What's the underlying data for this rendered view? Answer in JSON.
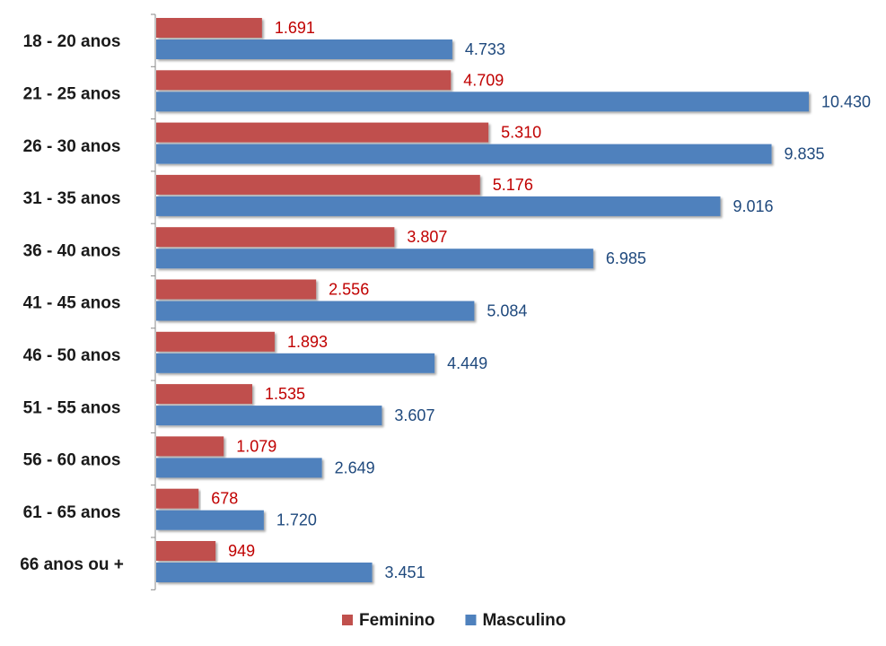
{
  "chart_data": {
    "type": "bar",
    "orientation": "horizontal",
    "categories": [
      "18 - 20 anos",
      "21 - 25 anos",
      "26 - 30 anos",
      "31 - 35 anos",
      "36 - 40 anos",
      "41 - 45 anos",
      "46 - 50 anos",
      "51 - 55 anos",
      "56 - 60 anos",
      "61 - 65 anos",
      "66 anos ou +"
    ],
    "series": [
      {
        "name": "Feminino",
        "color": "#C0504D",
        "label_color": "#C00000",
        "values": [
          1691,
          4709,
          5310,
          5176,
          3807,
          2556,
          1893,
          1535,
          1079,
          678,
          949
        ],
        "labels": [
          "1.691",
          "4.709",
          "5.310",
          "5.176",
          "3.807",
          "2.556",
          "1.893",
          "1.535",
          "1.079",
          "678",
          "949"
        ]
      },
      {
        "name": "Masculino",
        "color": "#4F81BD",
        "label_color": "#1F497D",
        "values": [
          4733,
          10430,
          9835,
          9016,
          6985,
          5084,
          4449,
          3607,
          2649,
          1720,
          3451
        ],
        "labels": [
          "4.733",
          "10.430",
          "9.835",
          "9.016",
          "6.985",
          "5.084",
          "4.449",
          "3.607",
          "2.649",
          "1.720",
          "3.451"
        ]
      }
    ],
    "xlim": [
      0,
      11000
    ],
    "grid": false,
    "legend_position": "bottom"
  }
}
